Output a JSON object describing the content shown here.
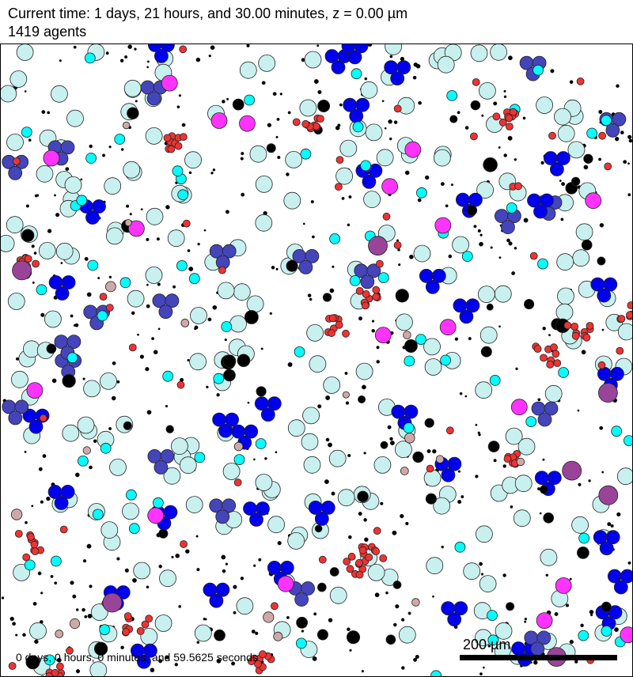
{
  "header": {
    "title": "Current time: 1 days, 21 hours, and 30.00 minutes, z = 0.00 µm",
    "agent_count": "1419 agents"
  },
  "plot": {
    "sim_time": "0 days, 0 hours, 0 minutes, and 59.5625 seconds",
    "scale_label": "200 µm"
  },
  "colors": {
    "background": "#ffffff",
    "border": "#000000",
    "pale_cyan": "#c8f0ee",
    "cyan": "#00ffff",
    "blue": "#0000ee",
    "slate_blue": "#4444bb",
    "red": "#ee3333",
    "magenta": "#ff33ff",
    "purple": "#994499",
    "black": "#000000",
    "rose": "#cfa9a9",
    "peach": "#f0aa80"
  }
}
